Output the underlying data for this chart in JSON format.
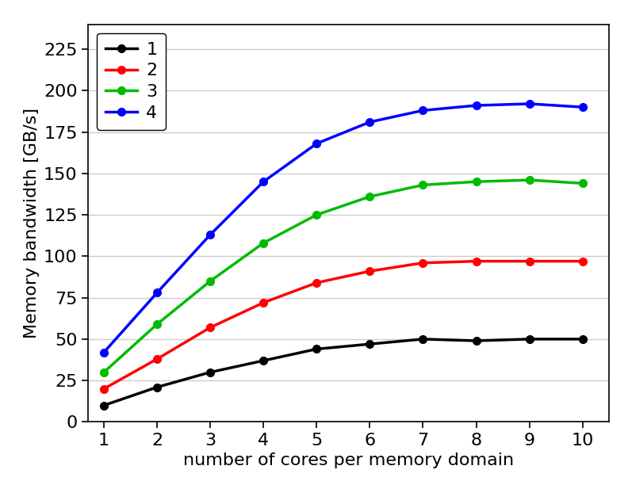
{
  "x": [
    1,
    2,
    3,
    4,
    5,
    6,
    7,
    8,
    9,
    10
  ],
  "series": {
    "1": [
      10,
      21,
      30,
      37,
      44,
      47,
      50,
      49,
      50,
      50
    ],
    "2": [
      20,
      38,
      57,
      72,
      84,
      91,
      96,
      97,
      97,
      97
    ],
    "3": [
      30,
      59,
      85,
      108,
      125,
      136,
      143,
      145,
      146,
      144
    ],
    "4": [
      42,
      78,
      113,
      145,
      168,
      181,
      188,
      191,
      192,
      190
    ]
  },
  "colors": {
    "1": "#000000",
    "2": "#ff0000",
    "3": "#00bb00",
    "4": "#0000ff"
  },
  "xlabel": "number of cores per memory domain",
  "ylabel": "Memory bandwidth [GB/s]",
  "xlim": [
    0.7,
    10.5
  ],
  "ylim": [
    0,
    240
  ],
  "yticks": [
    0,
    25,
    50,
    75,
    100,
    125,
    150,
    175,
    200,
    225
  ],
  "xticks": [
    1,
    2,
    3,
    4,
    5,
    6,
    7,
    8,
    9,
    10
  ],
  "legend_labels": [
    "1",
    "2",
    "3",
    "4"
  ],
  "label_fontsize": 16,
  "tick_fontsize": 16,
  "legend_fontsize": 16,
  "marker": "o",
  "markersize": 7,
  "linewidth": 2.5,
  "background_color": "#ffffff",
  "grid_color": "#cccccc"
}
